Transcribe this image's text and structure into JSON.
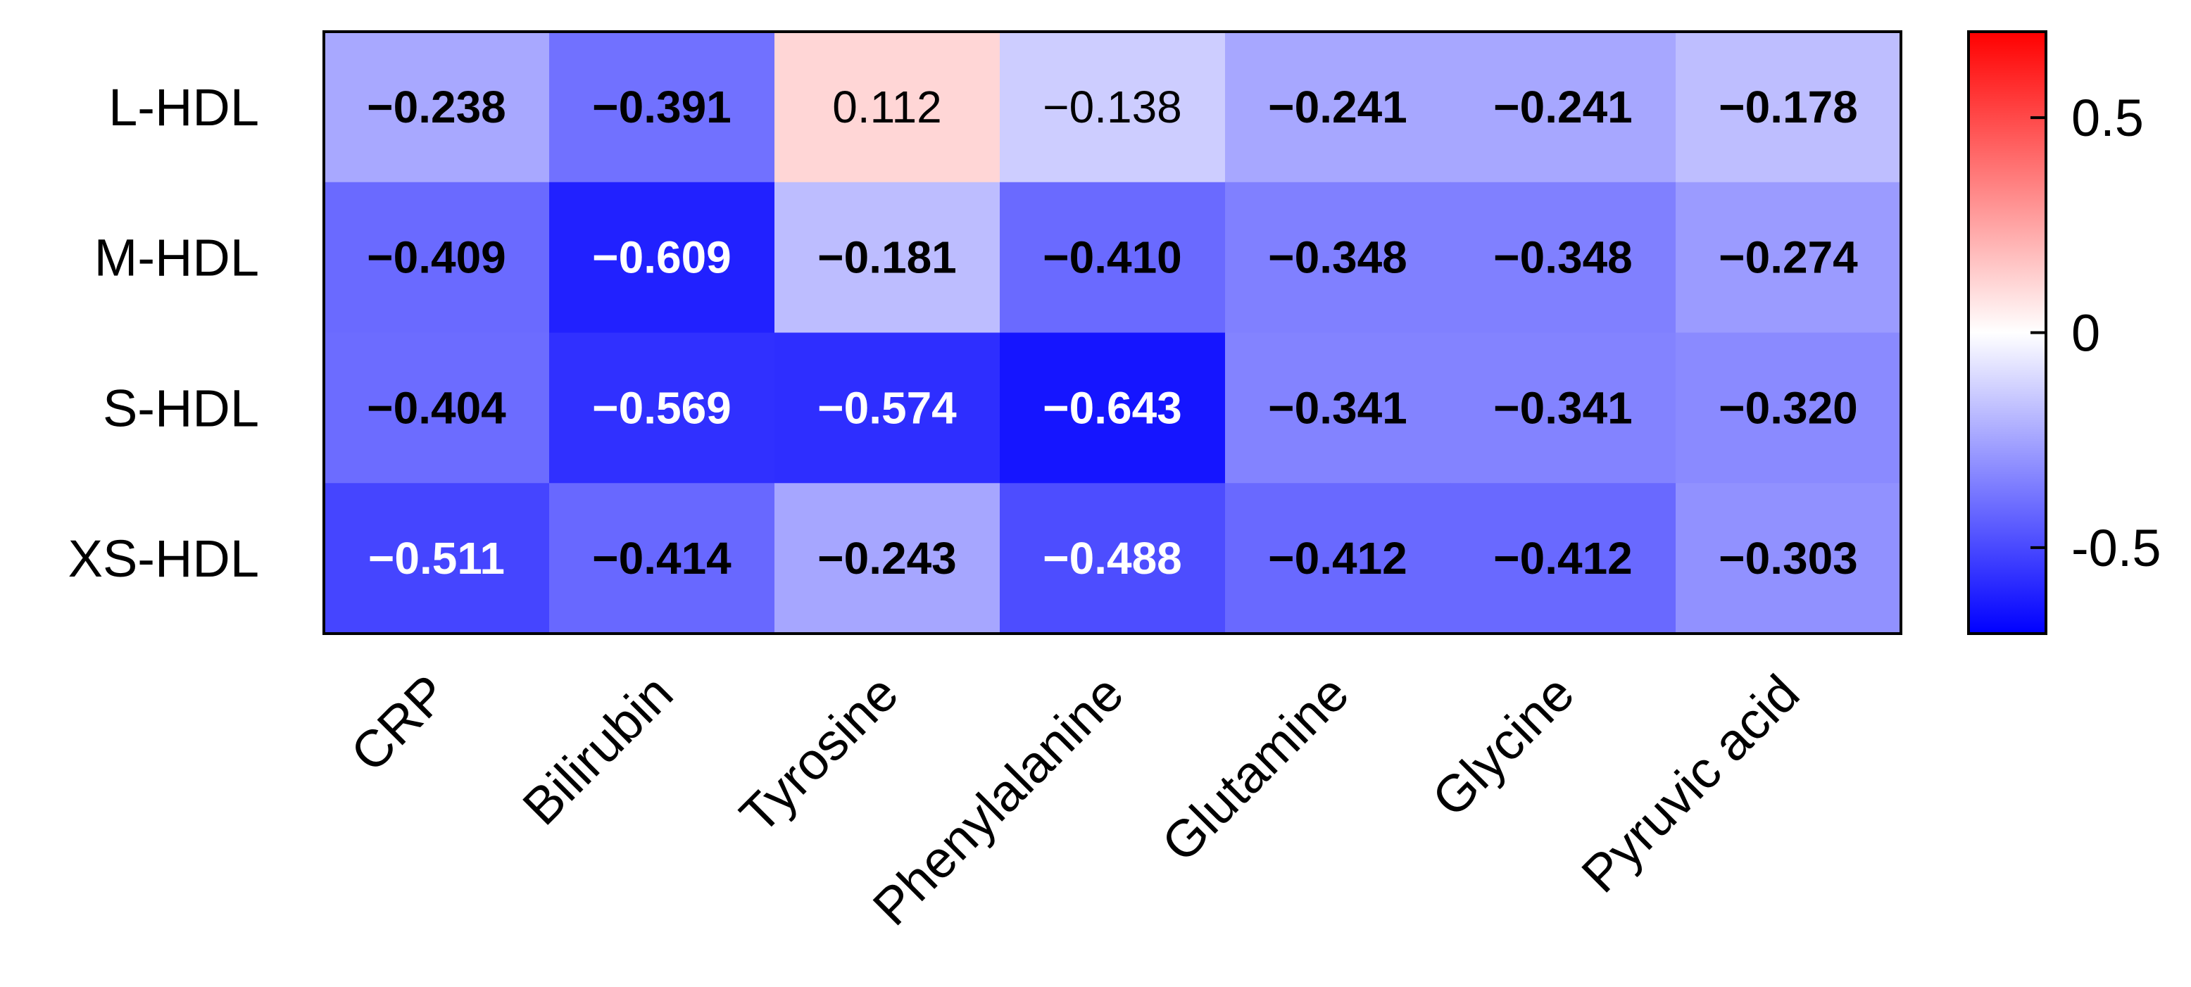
{
  "chart_data": {
    "type": "heatmap",
    "title": "",
    "xlabel": "",
    "ylabel": "",
    "rows": [
      "L-HDL",
      "M-HDL",
      "S-HDL",
      "XS-HDL"
    ],
    "columns": [
      "CRP",
      "Bilirubin",
      "Tyrosine",
      "Phenylalanine",
      "Glutamine",
      "Glycine",
      "Pyruvic acid"
    ],
    "values": [
      [
        -0.238,
        -0.391,
        0.112,
        -0.138,
        -0.241,
        -0.241,
        -0.178
      ],
      [
        -0.409,
        -0.609,
        -0.181,
        -0.41,
        -0.348,
        -0.348,
        -0.274
      ],
      [
        -0.404,
        -0.569,
        -0.574,
        -0.643,
        -0.341,
        -0.341,
        -0.32
      ],
      [
        -0.511,
        -0.414,
        -0.243,
        -0.488,
        -0.412,
        -0.412,
        -0.303
      ]
    ],
    "value_labels": [
      [
        "−0.238",
        "−0.391",
        "0.112",
        "−0.138",
        "−0.241",
        "−0.241",
        "−0.178"
      ],
      [
        "−0.409",
        "−0.609",
        "−0.181",
        "−0.410",
        "−0.348",
        "−0.348",
        "−0.274"
      ],
      [
        "−0.404",
        "−0.569",
        "−0.574",
        "−0.643",
        "−0.341",
        "−0.341",
        "−0.320"
      ],
      [
        "−0.511",
        "−0.414",
        "−0.243",
        "−0.488",
        "−0.412",
        "−0.412",
        "−0.303"
      ]
    ],
    "bold_cells": [
      [
        true,
        true,
        false,
        false,
        true,
        true,
        true
      ],
      [
        true,
        true,
        true,
        true,
        true,
        true,
        true
      ],
      [
        true,
        true,
        true,
        true,
        true,
        true,
        true
      ],
      [
        true,
        true,
        true,
        true,
        true,
        true,
        true
      ]
    ],
    "colorbar": {
      "range": [
        -0.7,
        0.7
      ],
      "ticks": [
        0.5,
        0,
        -0.5
      ],
      "tick_labels": [
        "0.5",
        "0",
        "-0.5"
      ],
      "low_color": "#0000ff",
      "mid_color": "#ffffff",
      "high_color": "#ff0000"
    },
    "legend_position": "right"
  }
}
